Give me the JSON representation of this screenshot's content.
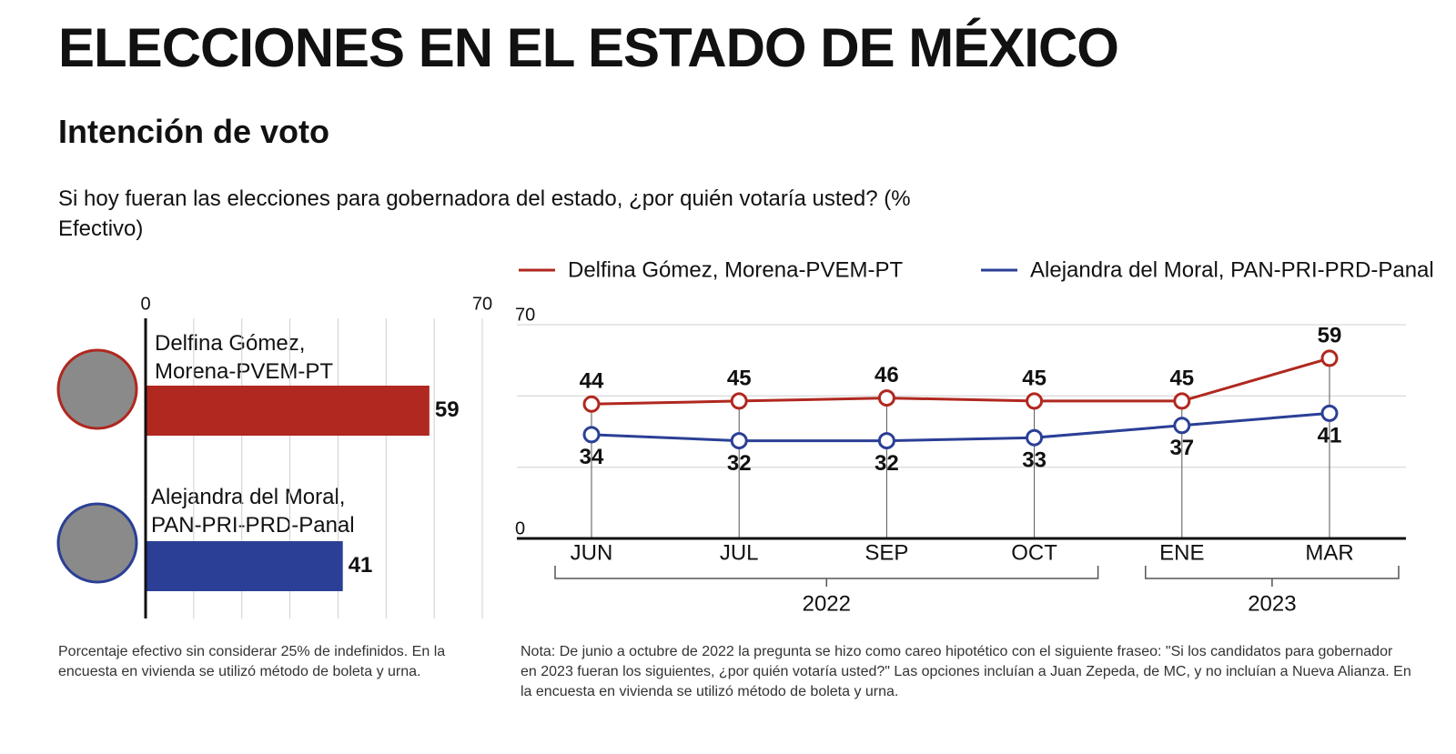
{
  "header": {
    "title": "ELECCIONES EN EL ESTADO DE MÉXICO",
    "subtitle": "Intención de voto",
    "question": "Si hoy fueran las elecciones para gobernadora del estado, ¿por quién votaría usted? (% Efectivo)"
  },
  "chart_data": [
    {
      "type": "hbar",
      "categories": [
        "Delfina Gómez, Morena-PVEM-PT",
        "Alejandra del Moral, PAN-PRI-PRD-Panal"
      ],
      "values": [
        59,
        41
      ],
      "colors": [
        "#b0281f",
        "#2b3f96"
      ],
      "xlim": [
        0,
        70
      ],
      "xticks": [
        0,
        70
      ],
      "minor_xticks": [
        10,
        20,
        30,
        40,
        50,
        60
      ],
      "grid": true,
      "note": "Porcentaje efectivo sin considerar 25% de indefinidos. En la encuesta en vivienda se utilizó método de boleta y urna."
    },
    {
      "type": "line",
      "categories": [
        "JUN",
        "JUL",
        "SEP",
        "OCT",
        "ENE",
        "MAR"
      ],
      "groups": [
        {
          "name": "2022",
          "count": 4
        },
        {
          "name": "2023",
          "count": 2
        }
      ],
      "series": [
        {
          "name": "Delfina Gómez, Morena-PVEM-PT",
          "color": "#b0281f",
          "values": [
            44,
            45,
            46,
            45,
            45,
            59
          ]
        },
        {
          "name": "Alejandra del Moral, PAN-PRI-PRD-Panal",
          "color": "#2b3f96",
          "values": [
            34,
            32,
            32,
            33,
            37,
            41
          ]
        }
      ],
      "ylim": [
        0,
        70
      ],
      "yticks": [
        0,
        70
      ],
      "minor_yticks": [
        23.3,
        46.7
      ],
      "grid": true,
      "legend": "top",
      "note": "Nota: De junio a octubre de 2022 la pregunta se hizo como careo hipotético con el siguiente fraseo: \"Si los candidatos para gobernador en 2023 fueran los siguientes, ¿por quién votaría usted?\" Las opciones incluían a Juan Zepeda, de MC, y no incluían a Nueva Alianza. En la encuesta en vivienda se utilizó método de boleta y urna."
    }
  ]
}
